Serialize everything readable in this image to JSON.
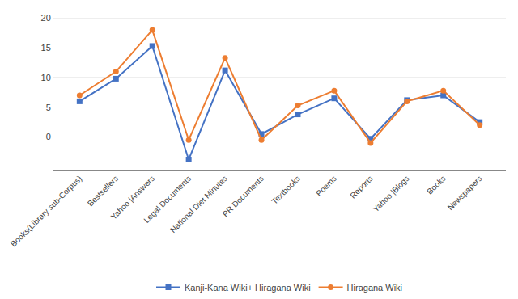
{
  "chart_data": {
    "type": "line",
    "categories": [
      "Books(Library sub-Corpus)",
      "Bestsellers",
      "Yahoo |Answers",
      "Legal Documents",
      "National Diet Minutes",
      "PR Documents",
      "Textbooks",
      "Poems",
      "Reports",
      "Yahoo |Blogs",
      "Books",
      "Newspapers"
    ],
    "series": [
      {
        "name": "Kanji-Kana Wiki+ Hiragana Wiki",
        "color": "#4472C4",
        "marker": "square",
        "values": [
          6.0,
          9.8,
          15.3,
          -3.8,
          11.2,
          0.5,
          3.8,
          6.5,
          -0.3,
          6.2,
          7.0,
          2.5
        ]
      },
      {
        "name": "Hiragana Wiki",
        "color": "#ED7D31",
        "marker": "circle",
        "values": [
          7.0,
          11.0,
          18.0,
          -0.5,
          13.3,
          -0.5,
          5.3,
          7.8,
          -1.0,
          6.0,
          7.8,
          2.0
        ]
      }
    ],
    "ylim": [
      -5.5,
      21
    ],
    "yticks": [
      0,
      5,
      10,
      15,
      20
    ],
    "grid": true,
    "legend": "bottom"
  }
}
